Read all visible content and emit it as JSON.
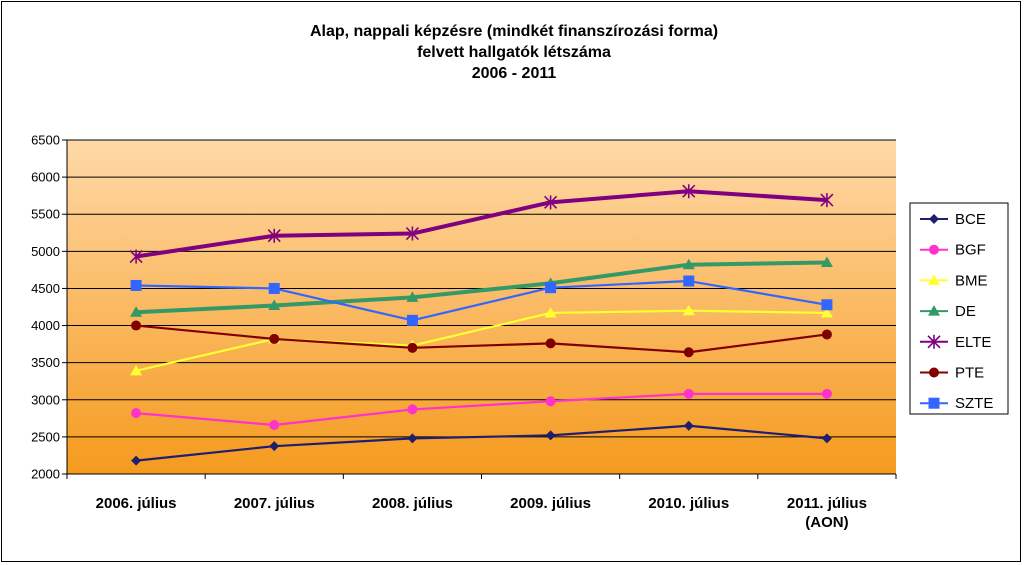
{
  "chart_data": {
    "type": "line",
    "title_lines": [
      "Alap, nappali képzésre (mindkét finanszírozási forma)",
      "felvett hallgatók létszáma",
      "2006 - 2011"
    ],
    "categories": [
      [
        "2006. július"
      ],
      [
        "2007. július"
      ],
      [
        "2008. július"
      ],
      [
        "2009. július"
      ],
      [
        "2010. július"
      ],
      [
        "2011. július",
        "(AON)"
      ]
    ],
    "ylim": [
      2000,
      6500
    ],
    "yticks": [
      2000,
      2500,
      3000,
      3500,
      4000,
      4500,
      5000,
      5500,
      6000,
      6500
    ],
    "grid": true,
    "legend_position": "right",
    "series": [
      {
        "name": "BCE",
        "color": "#1f1f6e",
        "marker": "diamond",
        "values": [
          2180,
          2375,
          2480,
          2520,
          2650,
          2480
        ]
      },
      {
        "name": "BGF",
        "color": "#ff33cc",
        "marker": "circle",
        "values": [
          2820,
          2660,
          2870,
          2980,
          3080,
          3080
        ]
      },
      {
        "name": "BME",
        "color": "#ffff33",
        "marker": "triangle",
        "values": [
          3390,
          3820,
          3730,
          4170,
          4200,
          4170
        ]
      },
      {
        "name": "DE",
        "color": "#339966",
        "marker": "triangle",
        "values": [
          4180,
          4270,
          4380,
          4570,
          4820,
          4850
        ]
      },
      {
        "name": "ELTE",
        "color": "#800080",
        "marker": "star",
        "values": [
          4930,
          5210,
          5240,
          5660,
          5810,
          5690
        ]
      },
      {
        "name": "PTE",
        "color": "#800000",
        "marker": "circle",
        "values": [
          4000,
          3820,
          3700,
          3760,
          3640,
          3880
        ]
      },
      {
        "name": "SZTE",
        "color": "#3366ff",
        "marker": "square",
        "values": [
          4540,
          4500,
          4070,
          4510,
          4600,
          4280
        ]
      }
    ]
  }
}
